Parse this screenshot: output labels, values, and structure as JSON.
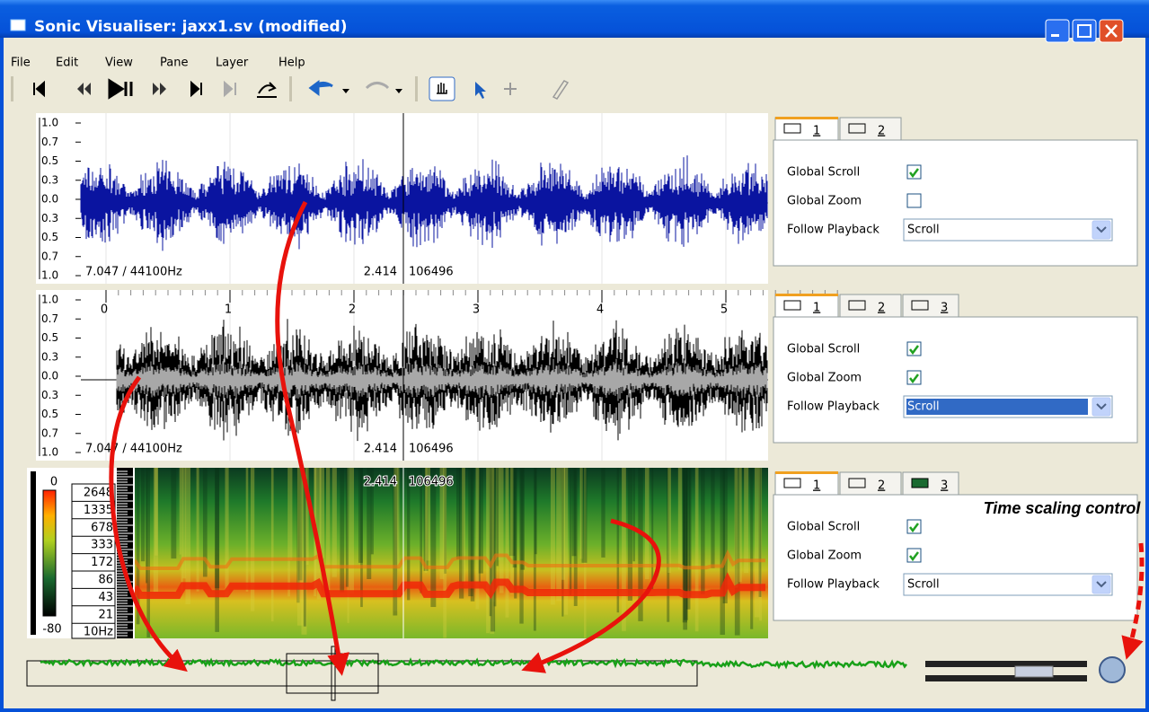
{
  "window": {
    "title": "Sonic Visualiser: jaxx1.sv (modified)"
  },
  "menu": [
    "File",
    "Edit",
    "View",
    "Pane",
    "Layer",
    "Help"
  ],
  "panes": [
    {
      "scale_labels": [
        "1.0",
        "0.7",
        "0.5",
        "0.3",
        "0.0",
        "0.3",
        "0.5",
        "0.7",
        "1.0"
      ],
      "info": {
        "rate": "7.047 / 44100Hz",
        "time": "2.414",
        "frame": "106496"
      },
      "tabs": [
        "1",
        "2"
      ],
      "properties": [
        {
          "label": "Global Scroll",
          "checked": true
        },
        {
          "label": "Global Zoom",
          "checked": false
        },
        {
          "label": "Follow Playback",
          "value": "Scroll",
          "selected": false
        }
      ]
    },
    {
      "scale_labels": [
        "1.0",
        "0.7",
        "0.5",
        "0.3",
        "0.0",
        "0.3",
        "0.5",
        "0.7",
        "1.0"
      ],
      "ruler": [
        "0",
        "1",
        "2",
        "3",
        "4",
        "5"
      ],
      "info": {
        "rate": "7.047 / 44100Hz",
        "time": "2.414",
        "frame": "106496"
      },
      "tabs": [
        "1",
        "2",
        "3"
      ],
      "properties": [
        {
          "label": "Global Scroll",
          "checked": true
        },
        {
          "label": "Global Zoom",
          "checked": true
        },
        {
          "label": "Follow Playback",
          "value": "Scroll",
          "selected": true
        }
      ]
    },
    {
      "colour_scale": [
        "0",
        "-80"
      ],
      "frequencies": [
        "2648",
        "1335",
        "678",
        "333",
        "172",
        "86",
        "43",
        "21",
        "10Hz"
      ],
      "info": {
        "time": "2.414",
        "frame": "106496"
      },
      "tabs": [
        "1",
        "2",
        "3"
      ],
      "properties": [
        {
          "label": "Global Scroll",
          "checked": true
        },
        {
          "label": "Global Zoom",
          "checked": true
        },
        {
          "label": "Follow Playback",
          "value": "Scroll",
          "selected": false
        }
      ]
    }
  ],
  "annotation": "Time scaling control"
}
